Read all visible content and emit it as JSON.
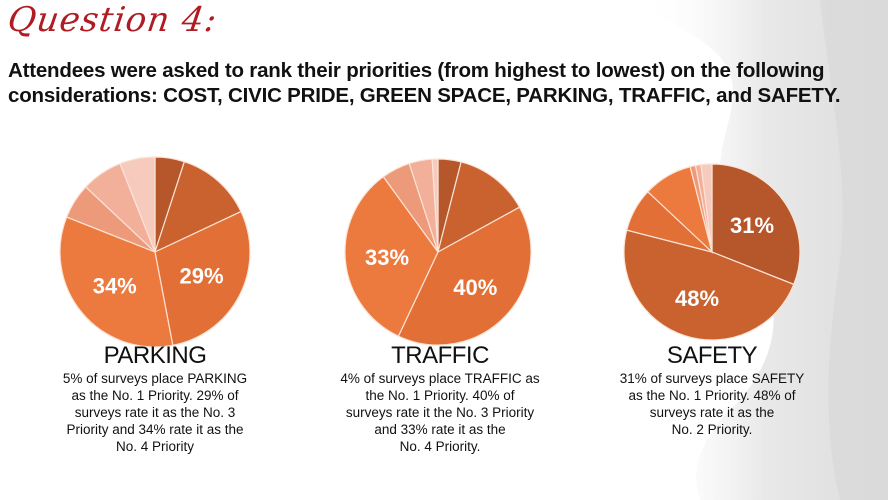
{
  "header": {
    "question_title": "Question 4:",
    "subtitle_line1": "Attendees were asked to rank their priorities (from highest to lowest) on the following",
    "subtitle_line2": "considerations: COST, CIVIC PRIDE, GREEN SPACE, PARKING, TRAFFIC, and SAFETY."
  },
  "colors": {
    "title_red": "#b01c24",
    "rank1": "#b5562b",
    "rank2": "#c9622f",
    "rank3": "#e26f35",
    "rank4": "#ec7a3e",
    "rank5": "#ec9a7a",
    "rank6": "#f2b09a",
    "rank7": "#f6cbbe"
  },
  "panels": [
    {
      "title": "PARKING",
      "body_lines": [
        "5% of surveys place PARKING",
        "as the No. 1 Priority. 29% of",
        "surveys rate it as the No. 3",
        "Priority and 34% rate it as the",
        "No. 4 Priority"
      ]
    },
    {
      "title": "TRAFFIC",
      "body_lines": [
        "4% of surveys place TRAFFIC as",
        "the No. 1 Priority.  40% of",
        "surveys rate it the No. 3 Priority",
        "and 33% rate it as the",
        "No. 4 Priority."
      ]
    },
    {
      "title": "SAFETY",
      "body_lines": [
        "31% of surveys place SAFETY",
        "as the No. 1 Priority.  48% of",
        "surveys rate it as the",
        "No. 2 Priority."
      ]
    }
  ],
  "chart_data": [
    {
      "type": "pie",
      "title": "PARKING",
      "categories": [
        "No. 1",
        "No. 2",
        "No. 3",
        "No. 4",
        "No. 5",
        "No. 6",
        "Other"
      ],
      "values": [
        5,
        13,
        29,
        34,
        6,
        7,
        6
      ],
      "labels_shown": {
        "No. 3": "29%",
        "No. 4": "34%"
      },
      "colors": [
        "#b5562b",
        "#c9622f",
        "#e26f35",
        "#ec7a3e",
        "#ec9a7a",
        "#f2b09a",
        "#f6cbbe"
      ],
      "center": [
        155,
        252
      ],
      "radius": 95
    },
    {
      "type": "pie",
      "title": "TRAFFIC",
      "categories": [
        "No. 1",
        "No. 2",
        "No. 3",
        "No. 4",
        "No. 5",
        "No. 6",
        "Other"
      ],
      "values": [
        4,
        13,
        40,
        33,
        5,
        4,
        1
      ],
      "labels_shown": {
        "No. 3": "40%",
        "No. 4": "33%"
      },
      "colors": [
        "#b5562b",
        "#c9622f",
        "#e26f35",
        "#ec7a3e",
        "#ec9a7a",
        "#f2b09a",
        "#f6cbbe"
      ],
      "center": [
        438,
        252
      ],
      "radius": 93
    },
    {
      "type": "pie",
      "title": "SAFETY",
      "categories": [
        "No. 1",
        "No. 2",
        "No. 3",
        "No. 4",
        "No. 5",
        "No. 6",
        "Other"
      ],
      "values": [
        31,
        48,
        8,
        9,
        1,
        1,
        2
      ],
      "labels_shown": {
        "No. 1": "31%",
        "No. 2": "48%"
      },
      "colors": [
        "#b5562b",
        "#c9622f",
        "#e26f35",
        "#ec7a3e",
        "#ec9a7a",
        "#f2b09a",
        "#f6cbbe"
      ],
      "center": [
        712,
        252
      ],
      "radius": 88
    }
  ]
}
